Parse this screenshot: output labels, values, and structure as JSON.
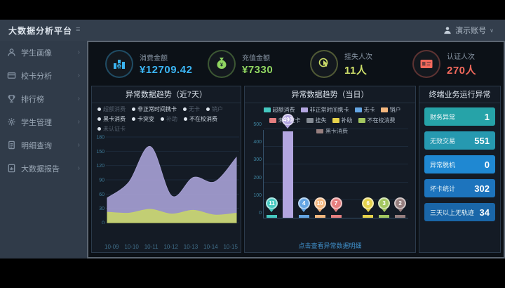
{
  "header": {
    "title": "大数据分析平台",
    "user": "演示账号",
    "caret": "∨"
  },
  "sidebar": {
    "items": [
      {
        "label": "学生画像",
        "icon": "user-icon"
      },
      {
        "label": "校卡分析",
        "icon": "card-icon"
      },
      {
        "label": "排行榜",
        "icon": "trophy-icon"
      },
      {
        "label": "学生管理",
        "icon": "gear-icon"
      },
      {
        "label": "明细查询",
        "icon": "document-icon"
      },
      {
        "label": "大数据报告",
        "icon": "report-icon"
      }
    ]
  },
  "kpis": [
    {
      "label": "消费金额",
      "value": "¥12709.42",
      "color": "#3bb4f2",
      "icon": "bar-chart-icon"
    },
    {
      "label": "充值金额",
      "value": "¥7330",
      "color": "#8fd460",
      "icon": "money-bag-icon"
    },
    {
      "label": "挂失人次",
      "value": "11人",
      "color": "#cfe06a",
      "icon": "hand-click-icon"
    },
    {
      "label": "认证人次",
      "value": "270人",
      "color": "#f2695c",
      "icon": "id-card-icon"
    }
  ],
  "left_chart": {
    "title": "异常数据趋势（近7天）",
    "legend": [
      {
        "label": "超额消费",
        "active": false
      },
      {
        "label": "非正常时间携卡",
        "active": true
      },
      {
        "label": "无卡",
        "active": false
      },
      {
        "label": "销户",
        "active": false
      },
      {
        "label": "黑卡消费",
        "active": true
      },
      {
        "label": "卡突变",
        "active": true
      },
      {
        "label": "补助",
        "active": false
      },
      {
        "label": "不在校消费",
        "active": true
      },
      {
        "label": "未认证卡",
        "active": false
      }
    ]
  },
  "middle_chart": {
    "title": "异常数据趋势（当日）",
    "footer_link": "点击查看异常数据明细"
  },
  "right_panel": {
    "title": "终端业务运行异常",
    "items": [
      {
        "label": "财务异常",
        "value": "1",
        "color": "#26a3a8"
      },
      {
        "label": "无效交易",
        "value": "551",
        "color": "#2699b0"
      },
      {
        "label": "异常脱机",
        "value": "0",
        "color": "#1f88d2"
      },
      {
        "label": "坏卡统计",
        "value": "302",
        "color": "#1d74bd"
      },
      {
        "label": "三天以上无轨迹",
        "value": "34",
        "color": "#1a66a8"
      }
    ]
  },
  "chart_data": [
    {
      "type": "area",
      "title": "异常数据趋势（近7天）",
      "x": [
        "10-09",
        "10-10",
        "10-11",
        "10-12",
        "10-13",
        "10-14",
        "10-15"
      ],
      "series": [
        {
          "name": "非正常时间携卡",
          "color": "#a59ed2",
          "values": [
            52,
            85,
            160,
            56,
            95,
            86,
            137
          ]
        },
        {
          "name": "不在校消费",
          "color": "#c6d36d",
          "values": [
            22,
            20,
            28,
            18,
            26,
            16,
            20
          ]
        }
      ],
      "ylim": [
        0,
        180
      ],
      "yticks": [
        0,
        30,
        60,
        90,
        120,
        150,
        180
      ],
      "grid": true,
      "legend_position": "top"
    },
    {
      "type": "bar",
      "title": "异常数据趋势（当日）",
      "categories": [
        "超额消费",
        "非正常时间携卡",
        "无卡",
        "销户",
        "未认证卡",
        "挂失",
        "补助",
        "不在校消费",
        "黑卡消费"
      ],
      "values": [
        11,
        490,
        4,
        10,
        7,
        0,
        6,
        3,
        2
      ],
      "colors": [
        "#45c8c0",
        "#b3a6e0",
        "#64a5e3",
        "#f4b77e",
        "#e57f7f",
        "#848b94",
        "#e6d24b",
        "#a3c660",
        "#977f7f"
      ],
      "ylim": [
        0,
        500
      ],
      "yticks": [
        0,
        100,
        200,
        300,
        400,
        500
      ],
      "grid": true,
      "legend_position": "top"
    }
  ]
}
